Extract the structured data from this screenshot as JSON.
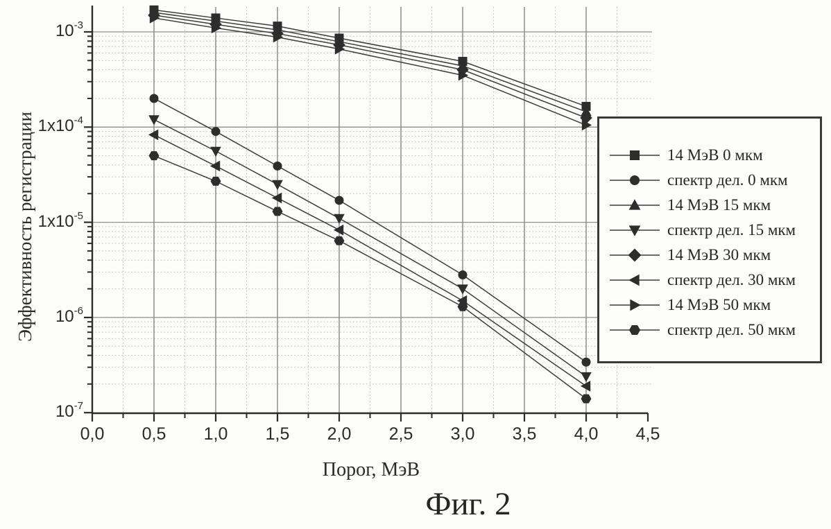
{
  "figure": {
    "caption": "Фиг. 2",
    "background": "#fcfcfb"
  },
  "chart_data": {
    "type": "line",
    "title": "",
    "xlabel": "Порог, МэВ",
    "ylabel": "Эффективность регистрации",
    "y_scale": "log",
    "xlim": [
      0,
      4.5
    ],
    "ylim": [
      1e-07,
      0.0019
    ],
    "x_tick_labels": [
      "0,0",
      "0,5",
      "1,0",
      "1,5",
      "2,0",
      "2,5",
      "3,0",
      "3,5",
      "4,0",
      "4,5"
    ],
    "x_tick_values": [
      0,
      0.5,
      1.0,
      1.5,
      2.0,
      2.5,
      3.0,
      3.5,
      4.0,
      4.5
    ],
    "y_tick_labels": [
      "10^-3",
      "1x10^-4",
      "1x10^-5",
      "10^-6",
      "10^-7"
    ],
    "y_tick_values": [
      0.001,
      0.0001,
      1e-05,
      1e-06,
      1e-07
    ],
    "grid": {
      "major_solid": true,
      "minor_dotted": true,
      "x_minor_step": 0.25
    },
    "legend_position": "right-overlay",
    "x": [
      0.5,
      1.0,
      1.5,
      2.0,
      3.0,
      4.0
    ],
    "series": [
      {
        "name": "14 МэВ 0 мкм",
        "marker": "square",
        "values": [
          0.0017,
          0.0014,
          0.00115,
          0.00086,
          0.00049,
          0.000165
        ]
      },
      {
        "name": "спектр дел. 0 мкм",
        "marker": "circle",
        "values": [
          0.0002,
          9e-05,
          3.9e-05,
          1.7e-05,
          2.8e-06,
          3.4e-07
        ]
      },
      {
        "name": "14 МэВ 15 мкм",
        "marker": "triangle-up",
        "values": [
          0.0016,
          0.0013,
          0.00105,
          0.00079,
          0.00044,
          0.000145
        ]
      },
      {
        "name": "спектр дел. 15 мкм",
        "marker": "triangle-down",
        "values": [
          0.00012,
          5.6e-05,
          2.5e-05,
          1.1e-05,
          2e-06,
          2.4e-07
        ]
      },
      {
        "name": "14 МэВ 30 мкм",
        "marker": "diamond",
        "values": [
          0.0015,
          0.0012,
          0.00096,
          0.00073,
          0.0004,
          0.000125
        ]
      },
      {
        "name": "спектр дел. 30 мкм",
        "marker": "triangle-left",
        "values": [
          8.3e-05,
          3.9e-05,
          1.8e-05,
          8.3e-06,
          1.5e-06,
          1.9e-07
        ]
      },
      {
        "name": "14 МэВ 50 мкм",
        "marker": "triangle-right",
        "values": [
          0.0014,
          0.0011,
          0.00088,
          0.00066,
          0.00035,
          0.000105
        ]
      },
      {
        "name": "спектр дел. 50 мкм",
        "marker": "hexagon",
        "values": [
          5e-05,
          2.7e-05,
          1.3e-05,
          6.4e-06,
          1.3e-06,
          1.4e-07
        ]
      }
    ],
    "colors": {
      "line": "#3d3d3d",
      "marker": "#2d2d2d",
      "axis": "#2b2b2b",
      "grid_major": "#8f8f8f",
      "grid_minor": "#b9b9b9",
      "text": "#2b2b2b",
      "legend_border": "#3a3a3a",
      "background": "#fcfcfb"
    }
  }
}
